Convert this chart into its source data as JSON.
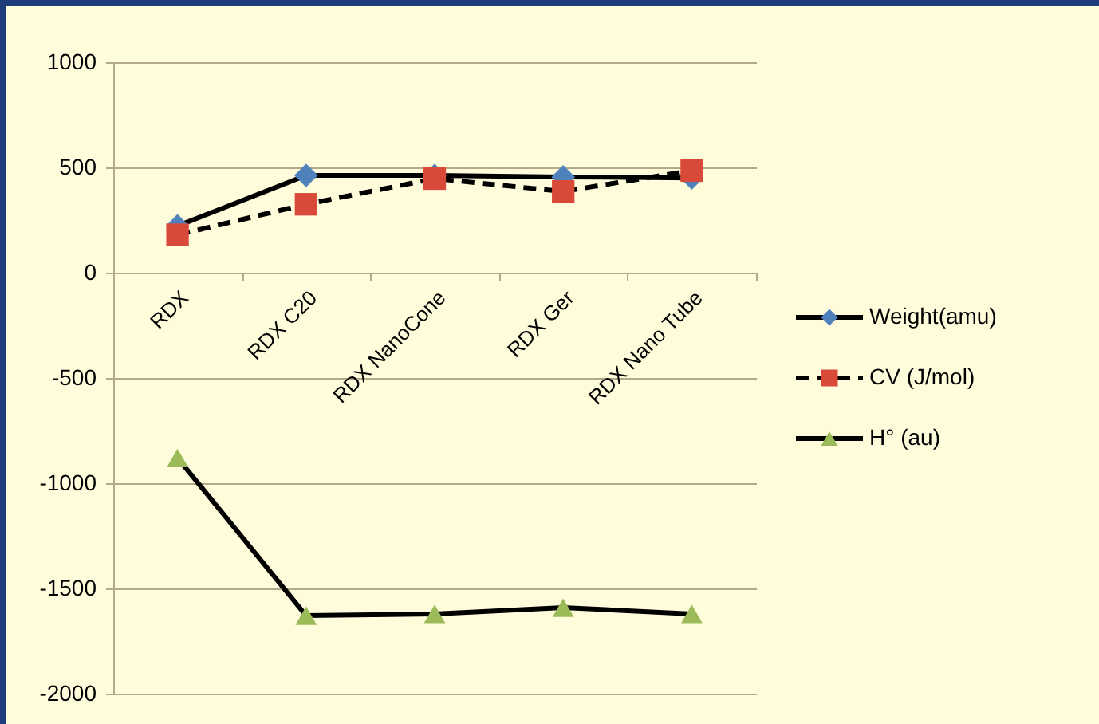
{
  "chart_data": {
    "type": "line",
    "categories": [
      "RDX",
      "RDX C20",
      "RDX NanoCone",
      "RDX Ger",
      "RDX Nano Tube"
    ],
    "series": [
      {
        "name": "Weight(amu)",
        "color": "#4f81bd",
        "marker": "diamond",
        "line_style": "solid",
        "values": [
          222,
          462,
          462,
          455,
          450
        ]
      },
      {
        "name": "CV (J/mol)",
        "color": "#d9493a",
        "marker": "square",
        "line_style": "dashed",
        "values": [
          180,
          325,
          447,
          386,
          485
        ]
      },
      {
        "name": "H° (au)",
        "color": "#9bbb59",
        "marker": "triangle",
        "line_style": "solid",
        "values": [
          -880,
          -1629,
          -1621,
          -1591,
          -1621
        ]
      }
    ],
    "ylim": [
      -2000,
      1000
    ],
    "yticks": [
      -2000,
      -1500,
      -1000,
      -500,
      0,
      500,
      1000
    ],
    "grid": "y",
    "legend": "right"
  }
}
